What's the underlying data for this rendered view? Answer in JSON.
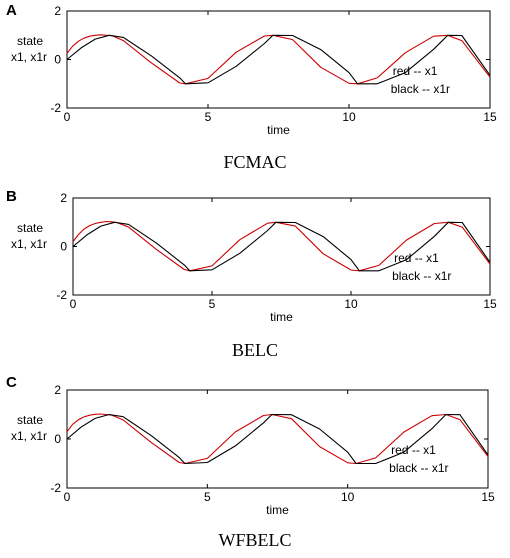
{
  "panels": [
    {
      "letter": "A",
      "caption": "FCMAC",
      "ylabel_line1": "state",
      "ylabel_line2": "x1,  x1r",
      "xlabel": "time",
      "legend_red": "red -- x1",
      "legend_black": "black -- x1r"
    },
    {
      "letter": "B",
      "caption": "BELC",
      "ylabel_line1": "state",
      "ylabel_line2": "x1,  x1r",
      "xlabel": "time",
      "legend_red": "red -- x1",
      "legend_black": "black -- x1r"
    },
    {
      "letter": "C",
      "caption": "WFBELC",
      "ylabel_line1": "state",
      "ylabel_line2": "x1,  x1r",
      "xlabel": "time",
      "legend_red": "red -- x1",
      "legend_black": "black -- x1r"
    }
  ],
  "colors": {
    "x1": "#cc0000",
    "x1r": "#000000"
  },
  "chart_data": [
    {
      "type": "line",
      "xlabel": "time",
      "ylabel": "state x1, x1r",
      "xlim": [
        0,
        15
      ],
      "ylim": [
        -2,
        2
      ],
      "xticks": [
        "0",
        "5",
        "10",
        "15"
      ],
      "yticks": [
        "2",
        "0",
        "-2"
      ],
      "legend_position": "lower-right",
      "series": [
        {
          "name": "x1",
          "color": "#cc0000",
          "x": [
            0,
            0.2,
            0.4,
            0.6,
            0.8,
            1.0,
            1.2,
            1.4,
            1.6,
            2,
            3,
            4,
            4.2,
            5,
            6,
            7,
            7.3,
            8,
            9,
            10,
            10.3,
            11,
            12,
            13,
            13.5,
            14,
            15
          ],
          "y": [
            0.25,
            0.55,
            0.75,
            0.88,
            0.96,
            1.0,
            1.02,
            1.0,
            0.98,
            0.78,
            -0.15,
            -0.97,
            -1.0,
            -0.78,
            0.3,
            0.97,
            1.0,
            0.82,
            -0.32,
            -0.98,
            -1.0,
            -0.76,
            0.28,
            0.96,
            1.0,
            0.78,
            -0.73
          ]
        },
        {
          "name": "x1r",
          "color": "#000000",
          "x": [
            0,
            0.5,
            1.0,
            1.5,
            2,
            3,
            4,
            4.2,
            5,
            6,
            7,
            7.3,
            8,
            9,
            10,
            10.3,
            11,
            12,
            13,
            13.5,
            14,
            15
          ],
          "y": [
            0,
            0.48,
            0.84,
            1.0,
            0.91,
            0.14,
            -0.76,
            -1.0,
            -0.96,
            -0.28,
            0.66,
            1.0,
            0.99,
            0.41,
            -0.54,
            -1.0,
            -1.0,
            -0.54,
            0.42,
            1.0,
            0.99,
            -0.65
          ]
        }
      ]
    },
    {
      "type": "line",
      "xlabel": "time",
      "ylabel": "state x1, x1r",
      "xlim": [
        0,
        15
      ],
      "ylim": [
        -2,
        2
      ],
      "xticks": [
        "0",
        "5",
        "10",
        "15"
      ],
      "yticks": [
        "2",
        "0",
        "-2"
      ],
      "legend_position": "lower-right",
      "series": [
        {
          "name": "x1",
          "color": "#cc0000",
          "x": [
            0,
            0.2,
            0.4,
            0.6,
            0.8,
            1.0,
            1.2,
            1.4,
            1.6,
            2,
            3,
            4,
            4.2,
            5,
            6,
            7,
            7.3,
            8,
            9,
            10,
            10.3,
            11,
            12,
            13,
            13.5,
            14,
            15
          ],
          "y": [
            0.2,
            0.5,
            0.72,
            0.86,
            0.95,
            1.0,
            1.03,
            1.02,
            0.98,
            0.8,
            -0.12,
            -0.95,
            -1.0,
            -0.8,
            0.28,
            0.96,
            1.0,
            0.84,
            -0.3,
            -0.97,
            -1.0,
            -0.78,
            0.27,
            0.95,
            1.0,
            0.8,
            -0.72
          ]
        },
        {
          "name": "x1r",
          "color": "#000000",
          "x": [
            0,
            0.5,
            1.0,
            1.5,
            2,
            3,
            4,
            4.2,
            5,
            6,
            7,
            7.3,
            8,
            9,
            10,
            10.3,
            11,
            12,
            13,
            13.5,
            14,
            15
          ],
          "y": [
            0,
            0.48,
            0.84,
            1.0,
            0.91,
            0.14,
            -0.76,
            -1.0,
            -0.96,
            -0.28,
            0.66,
            1.0,
            0.99,
            0.41,
            -0.54,
            -1.0,
            -1.0,
            -0.54,
            0.42,
            1.0,
            0.99,
            -0.65
          ]
        }
      ]
    },
    {
      "type": "line",
      "xlabel": "time",
      "ylabel": "state x1, x1r",
      "xlim": [
        0,
        15
      ],
      "ylim": [
        -2,
        2
      ],
      "xticks": [
        "0",
        "5",
        "10",
        "15"
      ],
      "yticks": [
        "2",
        "0",
        "-2"
      ],
      "legend_position": "lower-right",
      "series": [
        {
          "name": "x1",
          "color": "#cc0000",
          "x": [
            0,
            0.2,
            0.4,
            0.6,
            0.8,
            1.0,
            1.2,
            1.4,
            1.6,
            2,
            3,
            4,
            4.2,
            5,
            6,
            7,
            7.3,
            8,
            9,
            10,
            10.3,
            11,
            12,
            13,
            13.5,
            14,
            15
          ],
          "y": [
            0.3,
            0.6,
            0.78,
            0.9,
            0.97,
            1.01,
            1.02,
            1.0,
            0.97,
            0.78,
            -0.14,
            -0.96,
            -1.0,
            -0.79,
            0.29,
            0.96,
            1.0,
            0.83,
            -0.31,
            -0.97,
            -1.0,
            -0.77,
            0.28,
            0.95,
            1.0,
            0.79,
            -0.72
          ]
        },
        {
          "name": "x1r",
          "color": "#000000",
          "x": [
            0,
            0.5,
            1.0,
            1.5,
            2,
            3,
            4,
            4.2,
            5,
            6,
            7,
            7.3,
            8,
            9,
            10,
            10.3,
            11,
            12,
            13,
            13.5,
            14,
            15
          ],
          "y": [
            0,
            0.48,
            0.84,
            1.0,
            0.91,
            0.14,
            -0.76,
            -1.0,
            -0.96,
            -0.28,
            0.66,
            1.0,
            0.99,
            0.41,
            -0.54,
            -1.0,
            -1.0,
            -0.54,
            0.42,
            1.0,
            0.99,
            -0.65
          ]
        }
      ]
    }
  ]
}
